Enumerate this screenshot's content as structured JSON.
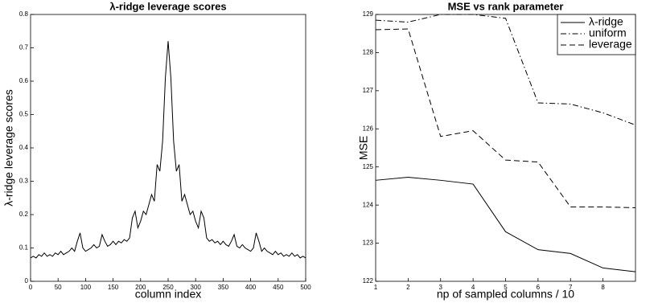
{
  "chart_data": [
    {
      "type": "line",
      "title": "λ-ridge leverage scores",
      "xlabel": "column index",
      "ylabel": "λ-ridge leverage scores",
      "x": [
        0,
        5,
        10,
        15,
        20,
        25,
        30,
        35,
        40,
        45,
        50,
        55,
        60,
        65,
        70,
        75,
        80,
        85,
        90,
        95,
        100,
        105,
        110,
        115,
        120,
        125,
        130,
        135,
        140,
        145,
        150,
        155,
        160,
        165,
        170,
        175,
        180,
        185,
        190,
        195,
        200,
        205,
        210,
        215,
        220,
        225,
        230,
        235,
        240,
        245,
        250,
        255,
        260,
        265,
        270,
        275,
        280,
        285,
        290,
        295,
        300,
        305,
        310,
        315,
        320,
        325,
        330,
        335,
        340,
        345,
        350,
        355,
        360,
        365,
        370,
        375,
        380,
        385,
        390,
        395,
        400,
        405,
        410,
        415,
        420,
        425,
        430,
        435,
        440,
        445,
        450,
        455,
        460,
        465,
        470,
        475,
        480,
        485,
        490,
        495,
        500
      ],
      "series": [
        {
          "color": "#000000",
          "linestyle": "solid",
          "values": [
            0.07,
            0.075,
            0.07,
            0.08,
            0.075,
            0.085,
            0.075,
            0.08,
            0.075,
            0.085,
            0.08,
            0.09,
            0.08,
            0.085,
            0.09,
            0.1,
            0.09,
            0.12,
            0.145,
            0.1,
            0.09,
            0.095,
            0.1,
            0.11,
            0.1,
            0.105,
            0.14,
            0.12,
            0.105,
            0.11,
            0.12,
            0.11,
            0.12,
            0.115,
            0.125,
            0.12,
            0.13,
            0.19,
            0.21,
            0.16,
            0.18,
            0.21,
            0.2,
            0.23,
            0.26,
            0.24,
            0.35,
            0.33,
            0.42,
            0.61,
            0.72,
            0.61,
            0.42,
            0.33,
            0.35,
            0.24,
            0.26,
            0.23,
            0.2,
            0.21,
            0.18,
            0.16,
            0.21,
            0.19,
            0.13,
            0.12,
            0.125,
            0.115,
            0.12,
            0.11,
            0.12,
            0.11,
            0.105,
            0.12,
            0.14,
            0.105,
            0.1,
            0.11,
            0.1,
            0.095,
            0.09,
            0.1,
            0.145,
            0.12,
            0.09,
            0.1,
            0.09,
            0.085,
            0.08,
            0.09,
            0.08,
            0.085,
            0.075,
            0.08,
            0.075,
            0.085,
            0.075,
            0.08,
            0.07,
            0.075,
            0.07
          ]
        }
      ],
      "xlim": [
        0,
        500
      ],
      "xticks": [
        0,
        50,
        100,
        150,
        200,
        250,
        300,
        350,
        400,
        450,
        500
      ],
      "ylim": [
        0,
        0.8
      ],
      "yticks": [
        0,
        0.1,
        0.2,
        0.3,
        0.4,
        0.5,
        0.6,
        0.7,
        0.8
      ]
    },
    {
      "type": "line",
      "title": "MSE vs rank parameter",
      "xlabel": "np of sampled columns / 10",
      "ylabel": "MSE",
      "x": [
        1,
        2,
        3,
        4,
        5,
        6,
        7,
        8,
        9
      ],
      "series": [
        {
          "name": "λ-ridge",
          "color": "#000000",
          "linestyle": "solid",
          "values": [
            124.65,
            124.73,
            124.65,
            124.55,
            123.3,
            122.83,
            122.73,
            122.35,
            122.25
          ]
        },
        {
          "name": "uniform",
          "color": "#000000",
          "linestyle": "dashdot",
          "values": [
            128.85,
            128.8,
            129.0,
            129.0,
            128.9,
            126.68,
            126.65,
            126.42,
            126.1
          ]
        },
        {
          "name": "leverage",
          "color": "#000000",
          "linestyle": "dashed",
          "values": [
            128.6,
            128.62,
            125.8,
            125.95,
            125.18,
            125.13,
            123.95,
            123.95,
            123.93
          ]
        }
      ],
      "xlim": [
        1,
        9
      ],
      "xticks": [
        1,
        2,
        3,
        4,
        5,
        6,
        7,
        8
      ],
      "ylim": [
        122,
        129
      ],
      "yticks": [
        122,
        123,
        124,
        125,
        126,
        127,
        128,
        129
      ],
      "legend": "upper right"
    }
  ]
}
